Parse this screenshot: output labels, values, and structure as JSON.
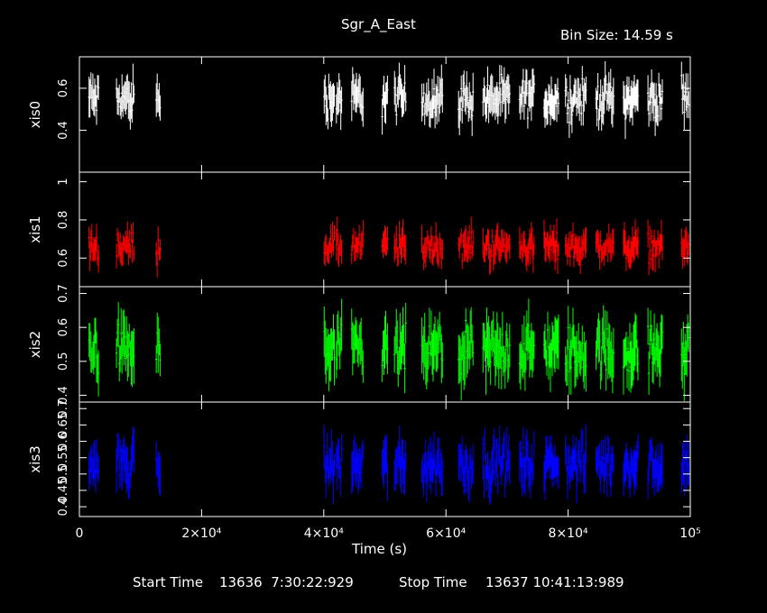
{
  "title": "Sgr_A_East",
  "bin_size_label": "Bin Size: 14.59 s",
  "xlabel": "Time (s)",
  "footer": {
    "start_label": "Start Time",
    "start_value": "13636  7:30:22:929",
    "stop_label": "Stop Time",
    "stop_value": "13637 10:41:13:989"
  },
  "colors": {
    "background": "#000000",
    "axes": "#ffffff",
    "xis0": "#ffffff",
    "xis1": "#ff0000",
    "xis2": "#00ff00",
    "xis3": "#0000ff"
  },
  "chart_data": {
    "type": "scatter",
    "title": "Sgr_A_East",
    "xlabel": "Time (s)",
    "xlim": [
      0,
      100000
    ],
    "x_ticks": [
      {
        "value": 0,
        "label": "0"
      },
      {
        "value": 20000,
        "label": "2×10⁴"
      },
      {
        "value": 40000,
        "label": "4×10⁴"
      },
      {
        "value": 60000,
        "label": "6×10⁴"
      },
      {
        "value": 80000,
        "label": "8×10⁴"
      },
      {
        "value": 100000,
        "label": "10⁵"
      }
    ],
    "observation_windows": [
      [
        1500,
        3200
      ],
      [
        6000,
        9000
      ],
      [
        12500,
        13300
      ],
      [
        40000,
        41800
      ],
      [
        42000,
        43000
      ],
      [
        44500,
        46500
      ],
      [
        49500,
        50500
      ],
      [
        51500,
        53500
      ],
      [
        56000,
        59500
      ],
      [
        62000,
        64500
      ],
      [
        66000,
        68000
      ],
      [
        68000,
        70500
      ],
      [
        72000,
        74500
      ],
      [
        76000,
        78500
      ],
      [
        79500,
        83000
      ],
      [
        84500,
        87500
      ],
      [
        89000,
        91500
      ],
      [
        93000,
        95500
      ],
      [
        98500,
        99800
      ]
    ],
    "series": [
      {
        "name": "xis0",
        "color": "#ffffff",
        "ylim": [
          0.2,
          0.75
        ],
        "yticks": [
          0.4,
          0.6
        ],
        "mean": 0.55,
        "scatter": 0.07
      },
      {
        "name": "xis1",
        "color": "#ff0000",
        "ylim": [
          0.45,
          1.05
        ],
        "yticks": [
          0.6,
          0.8,
          1
        ],
        "mean": 0.66,
        "scatter": 0.06
      },
      {
        "name": "xis2",
        "color": "#00ff00",
        "ylim": [
          0.38,
          0.72
        ],
        "yticks": [
          0.4,
          0.5,
          0.6,
          0.7
        ],
        "mean": 0.53,
        "scatter": 0.06
      },
      {
        "name": "xis3",
        "color": "#0000ff",
        "ylim": [
          0.37,
          0.72
        ],
        "yticks": [
          0.4,
          0.45,
          0.5,
          0.55,
          0.6,
          0.65,
          0.7
        ],
        "mean": 0.53,
        "scatter": 0.05
      }
    ]
  }
}
